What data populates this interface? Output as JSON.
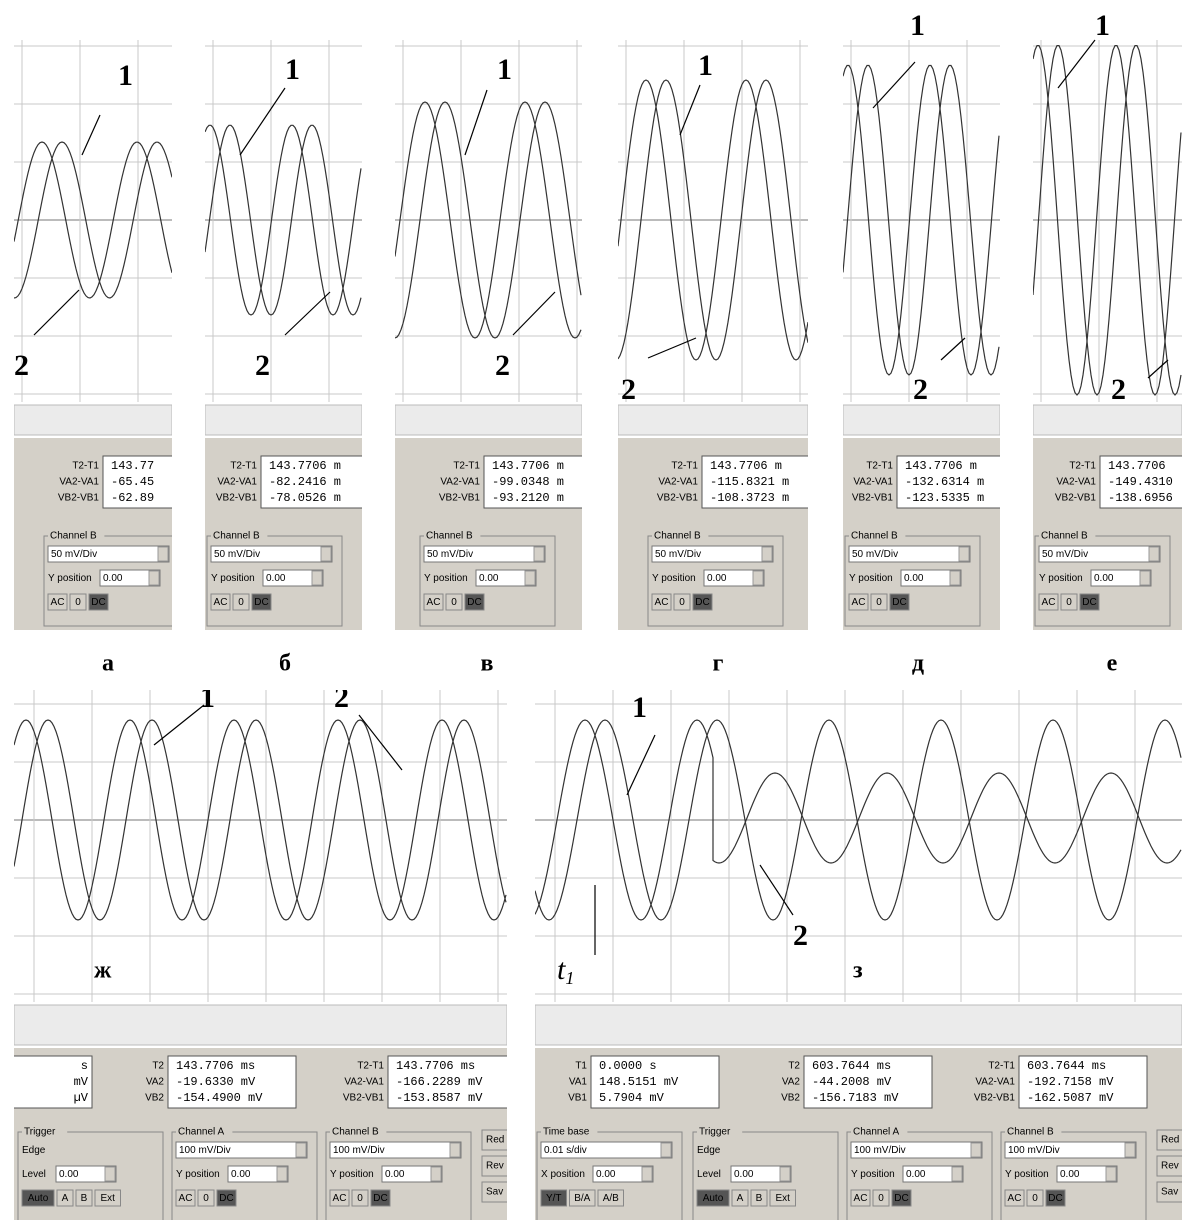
{
  "top_panels": [
    {
      "letter": "а",
      "curve_1": "1",
      "curve_2": "2",
      "readouts": [
        {
          "label": "T2-T1",
          "value": "143.77"
        },
        {
          "label": "VA2-VA1",
          "value": "-65.45"
        },
        {
          "label": "VB2-VB1",
          "value": "-62.89"
        }
      ],
      "channel": {
        "title": "Channel B",
        "rows": [
          {
            "field": "50 mV/Div"
          },
          {
            "label": "Y position",
            "field": "0.00"
          },
          {
            "buttons": [
              "AC",
              "0",
              "DC"
            ]
          }
        ]
      }
    },
    {
      "letter": "б",
      "curve_1": "1",
      "curve_2": "2",
      "readouts": [
        {
          "label": "T2-T1",
          "value": "143.7706 m"
        },
        {
          "label": "VA2-VA1",
          "value": "-82.2416 m"
        },
        {
          "label": "VB2-VB1",
          "value": "-78.0526 m"
        }
      ],
      "channel": {
        "title": "Channel B",
        "rows": [
          {
            "field": "50 mV/Div"
          },
          {
            "label": "Y position",
            "field": "0.00"
          },
          {
            "buttons": [
              "AC",
              "0",
              "DC"
            ]
          }
        ]
      }
    },
    {
      "letter": "в",
      "curve_1": "1",
      "curve_2": "2",
      "readouts": [
        {
          "label": "T2-T1",
          "value": "143.7706 m"
        },
        {
          "label": "VA2-VA1",
          "value": "-99.0348 m"
        },
        {
          "label": "VB2-VB1",
          "value": "-93.2120 m"
        }
      ],
      "channel": {
        "title": "Channel B",
        "rows": [
          {
            "field": "50 mV/Div"
          },
          {
            "label": "Y position",
            "field": "0.00"
          },
          {
            "buttons": [
              "AC",
              "0",
              "DC"
            ]
          }
        ]
      }
    },
    {
      "letter": "г",
      "curve_1": "1",
      "curve_2": "2",
      "readouts": [
        {
          "label": "T2-T1",
          "value": "143.7706 m"
        },
        {
          "label": "VA2-VA1",
          "value": "-115.8321 m"
        },
        {
          "label": "VB2-VB1",
          "value": "-108.3723 m"
        }
      ],
      "channel": {
        "title": "Channel B",
        "rows": [
          {
            "field": "50 mV/Div"
          },
          {
            "label": "Y position",
            "field": "0.00"
          },
          {
            "buttons": [
              "AC",
              "0",
              "DC"
            ]
          }
        ]
      }
    },
    {
      "letter": "д",
      "curve_1": "1",
      "curve_2": "2",
      "readouts": [
        {
          "label": "T2-T1",
          "value": "143.7706 m"
        },
        {
          "label": "VA2-VA1",
          "value": "-132.6314 m"
        },
        {
          "label": "VB2-VB1",
          "value": "-123.5335 m"
        }
      ],
      "channel": {
        "title": "Channel B",
        "rows": [
          {
            "field": "50 mV/Div"
          },
          {
            "label": "Y position",
            "field": "0.00"
          },
          {
            "buttons": [
              "AC",
              "0",
              "DC"
            ]
          }
        ]
      }
    },
    {
      "letter": "е",
      "curve_1": "1",
      "curve_2": "2",
      "readouts": [
        {
          "label": "T2-T1",
          "value": "143.7706"
        },
        {
          "label": "VA2-VA1",
          "value": "-149.4310"
        },
        {
          "label": "VB2-VB1",
          "value": "-138.6956"
        }
      ],
      "channel": {
        "title": "Channel B",
        "rows": [
          {
            "field": "50 mV/Div"
          },
          {
            "label": "Y position",
            "field": "0.00"
          },
          {
            "buttons": [
              "AC",
              "0",
              "DC"
            ]
          }
        ]
      }
    }
  ],
  "bottom_panels": [
    {
      "letter": "ж",
      "curve_1": "1",
      "curve_2": "2",
      "readout_groups": [
        [
          {
            "value": "s"
          },
          {
            "value": "mV"
          },
          {
            "value": "µV"
          }
        ],
        [
          {
            "label": "T2",
            "value": "143.7706 ms"
          },
          {
            "label": "VA2",
            "value": "-19.6330 mV"
          },
          {
            "label": "VB2",
            "value": "-154.4900 mV"
          }
        ],
        [
          {
            "label": "T2-T1",
            "value": "143.7706 ms"
          },
          {
            "label": "VA2-VA1",
            "value": "-166.2289 mV"
          },
          {
            "label": "VB2-VB1",
            "value": "-153.8587 mV"
          }
        ]
      ],
      "controls": [
        {
          "title": "Trigger",
          "rows": [
            {
              "label": "Edge"
            },
            {
              "label": "Level",
              "field": "0.00"
            },
            {
              "buttons": [
                "Auto",
                "A",
                "B",
                "Ext"
              ]
            }
          ]
        },
        {
          "title": "Channel A",
          "rows": [
            {
              "field": "100 mV/Div"
            },
            {
              "label": "Y position",
              "field": "0.00"
            },
            {
              "buttons": [
                "AC",
                "0",
                "DC"
              ]
            }
          ]
        },
        {
          "title": "Channel B",
          "rows": [
            {
              "field": "100 mV/Div"
            },
            {
              "label": "Y position",
              "field": "0.00"
            },
            {
              "buttons": [
                "AC",
                "0",
                "DC"
              ]
            }
          ]
        }
      ],
      "side_buttons": [
        "Red",
        "Rev",
        "Sav"
      ]
    },
    {
      "letter": "з",
      "curve_1": "1",
      "curve_2": "2",
      "marker": {
        "text": "t",
        "subscript": "1"
      },
      "readout_groups": [
        [
          {
            "label": "T1",
            "value": "0.0000 s"
          },
          {
            "label": "VA1",
            "value": "148.5151 mV"
          },
          {
            "label": "VB1",
            "value": "5.7904 mV"
          }
        ],
        [
          {
            "label": "T2",
            "value": "603.7644 ms"
          },
          {
            "label": "VA2",
            "value": "-44.2008 mV"
          },
          {
            "label": "VB2",
            "value": "-156.7183 mV"
          }
        ],
        [
          {
            "label": "T2-T1",
            "value": "603.7644 ms"
          },
          {
            "label": "VA2-VA1",
            "value": "-192.7158 mV"
          },
          {
            "label": "VB2-VB1",
            "value": "-162.5087 mV"
          }
        ]
      ],
      "controls": [
        {
          "title": "Time base",
          "rows": [
            {
              "field": "0.01 s/div"
            },
            {
              "label": "X position",
              "field": "0.00"
            },
            {
              "buttons": [
                "Y/T",
                "B/A",
                "A/B"
              ]
            }
          ]
        },
        {
          "title": "Trigger",
          "rows": [
            {
              "label": "Edge"
            },
            {
              "label": "Level",
              "field": "0.00"
            },
            {
              "buttons": [
                "Auto",
                "A",
                "B",
                "Ext"
              ]
            }
          ]
        },
        {
          "title": "Channel A",
          "rows": [
            {
              "field": "100 mV/Div"
            },
            {
              "label": "Y position",
              "field": "0.00"
            },
            {
              "buttons": [
                "AC",
                "0",
                "DC"
              ]
            }
          ]
        },
        {
          "title": "Channel B",
          "rows": [
            {
              "field": "100 mV/Div"
            },
            {
              "label": "Y position",
              "field": "0.00"
            },
            {
              "buttons": [
                "AC",
                "0",
                "DC"
              ]
            }
          ]
        }
      ],
      "side_buttons": [
        "Red",
        "Rev",
        "Sav"
      ]
    }
  ]
}
